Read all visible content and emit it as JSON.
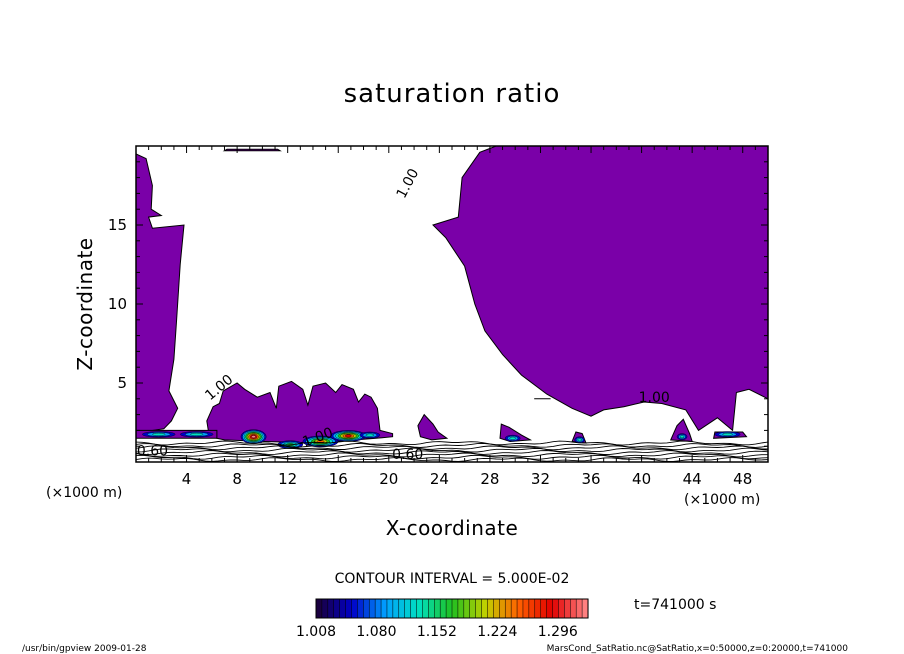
{
  "chart_data": {
    "type": "contour",
    "title": "saturation ratio",
    "xlabel": "X-coordinate",
    "ylabel": "Z-coordinate",
    "x_unit_label": "(×1000 m)",
    "z_unit_label": "(×1000 m)",
    "xlim": [
      0,
      50
    ],
    "ylim": [
      0,
      20
    ],
    "xticks": [
      "4",
      "8",
      "12",
      "16",
      "20",
      "24",
      "28",
      "32",
      "36",
      "40",
      "44",
      "48"
    ],
    "yticks": [
      "5",
      "10",
      "15"
    ],
    "contour_interval_text": "CONTOUR INTERVAL = 5.000E-02",
    "time_label": "t=741000 s",
    "colorbar_ticks": [
      "1.008",
      "1.080",
      "1.152",
      "1.224",
      "1.296"
    ],
    "colorbar_range": [
      1.008,
      1.332
    ],
    "colormap": [
      "#1a0040",
      "#0000c8",
      "#00a0ff",
      "#00e0c0",
      "#20c020",
      "#c0d000",
      "#ff6000",
      "#e00000",
      "#ff8080"
    ],
    "fill_color": "#7a00a8",
    "contour_labels": [
      {
        "text": "1.00",
        "x": 21.8,
        "z": 17.5
      },
      {
        "text": "1.00",
        "x": 6.8,
        "z": 4.5
      },
      {
        "text": "1.00",
        "x": 41.0,
        "z": 3.8
      },
      {
        "text": "0.60",
        "x": 1.3,
        "z": 0.4
      },
      {
        "text": "0.60",
        "x": 21.5,
        "z": 0.2
      },
      {
        "text": "1.00",
        "x": 14.5,
        "z": 1.3
      }
    ]
  },
  "footer": {
    "left": "/usr/bin/gpview  2009-01-28",
    "right": "MarsCond_SatRatio.nc@SatRatio,x=0:50000,z=0:20000,t=741000"
  }
}
